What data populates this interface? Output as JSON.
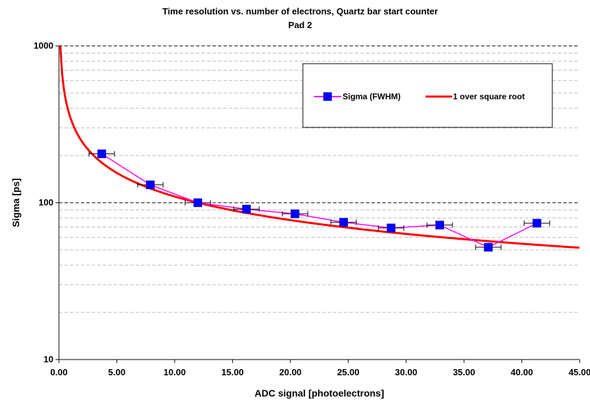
{
  "chart_data": {
    "type": "scatter",
    "title": "Time resolution vs. number of electrons, Quartz bar start counter",
    "subtitle": "Pad 2",
    "xlabel": "ADC signal [photoelectrons]",
    "ylabel": "Sigma [ps]",
    "xlim": [
      0,
      45
    ],
    "ylim": [
      10,
      1000
    ],
    "yscale": "log",
    "x_tick_labels": [
      "0.00",
      "5.00",
      "10.00",
      "15.00",
      "20.00",
      "25.00",
      "30.00",
      "35.00",
      "40.00",
      "45.00"
    ],
    "y_tick_labels": [
      "10",
      "100",
      "1000"
    ],
    "grid": "horizontal dashed",
    "legend_position": "top-right",
    "series": [
      {
        "name": "Sigma (FWHM)",
        "color": "#ff00ff",
        "marker_color": "#0000ff",
        "marker": "square",
        "x": [
          3.7,
          7.9,
          12.0,
          16.2,
          20.4,
          24.6,
          28.7,
          32.9,
          37.1,
          41.3
        ],
        "y": [
          205,
          130,
          100,
          91,
          85,
          75,
          69,
          72,
          52,
          74
        ],
        "x_err": [
          1.1,
          1.1,
          1.1,
          1.1,
          1.1,
          1.1,
          1.1,
          1.1,
          1.1,
          1.1
        ]
      },
      {
        "name": "1 over square root",
        "color": "#ff0000",
        "type": "line",
        "formula": "sigma = 346.4 / sqrt(x)"
      }
    ]
  }
}
